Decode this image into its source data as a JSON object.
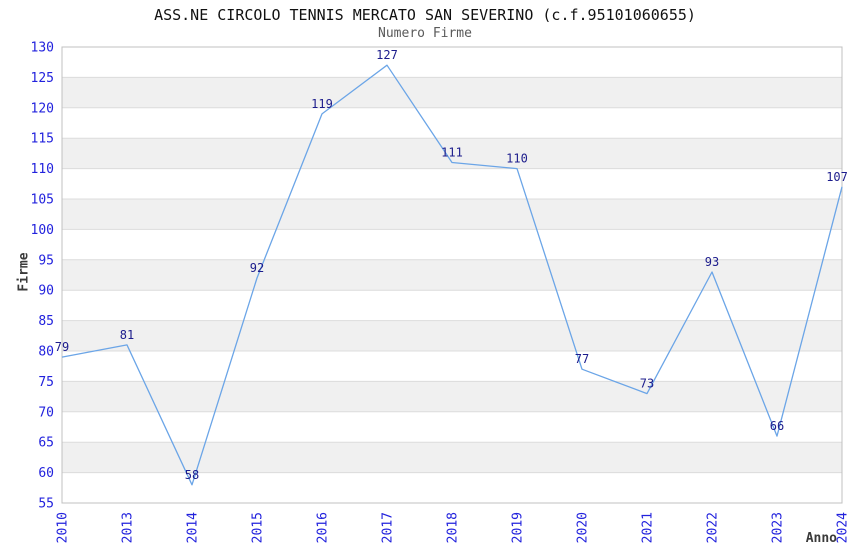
{
  "chart_data": {
    "type": "line",
    "title": "ASS.NE CIRCOLO TENNIS MERCATO SAN SEVERINO (c.f.95101060655)",
    "subtitle": "Numero Firme",
    "xlabel": "Anno",
    "ylabel": "Firme",
    "categories": [
      "2010",
      "2013",
      "2014",
      "2015",
      "2016",
      "2017",
      "2018",
      "2019",
      "2020",
      "2021",
      "2022",
      "2023",
      "2024"
    ],
    "values": [
      79,
      81,
      58,
      92,
      119,
      127,
      111,
      110,
      77,
      73,
      93,
      66,
      107
    ],
    "ylim": [
      55,
      130
    ],
    "ytick_step": 5,
    "yticks": [
      55,
      60,
      65,
      70,
      75,
      80,
      85,
      90,
      95,
      100,
      105,
      110,
      115,
      120,
      125,
      130
    ],
    "legend": "none",
    "grid": "horizontal-bands",
    "colors": {
      "line": "#6BA5E7",
      "data_label": "#1C1C8C",
      "tick_label": "#2222DD",
      "band_gray": "#F0F0F0",
      "band_white": "#FFFFFF",
      "gridline": "#DCDCDC",
      "border": "#C0C0C0",
      "title": "#111111",
      "subtitle": "#5A5A5A",
      "axis_label": "#3A3A3A"
    }
  }
}
